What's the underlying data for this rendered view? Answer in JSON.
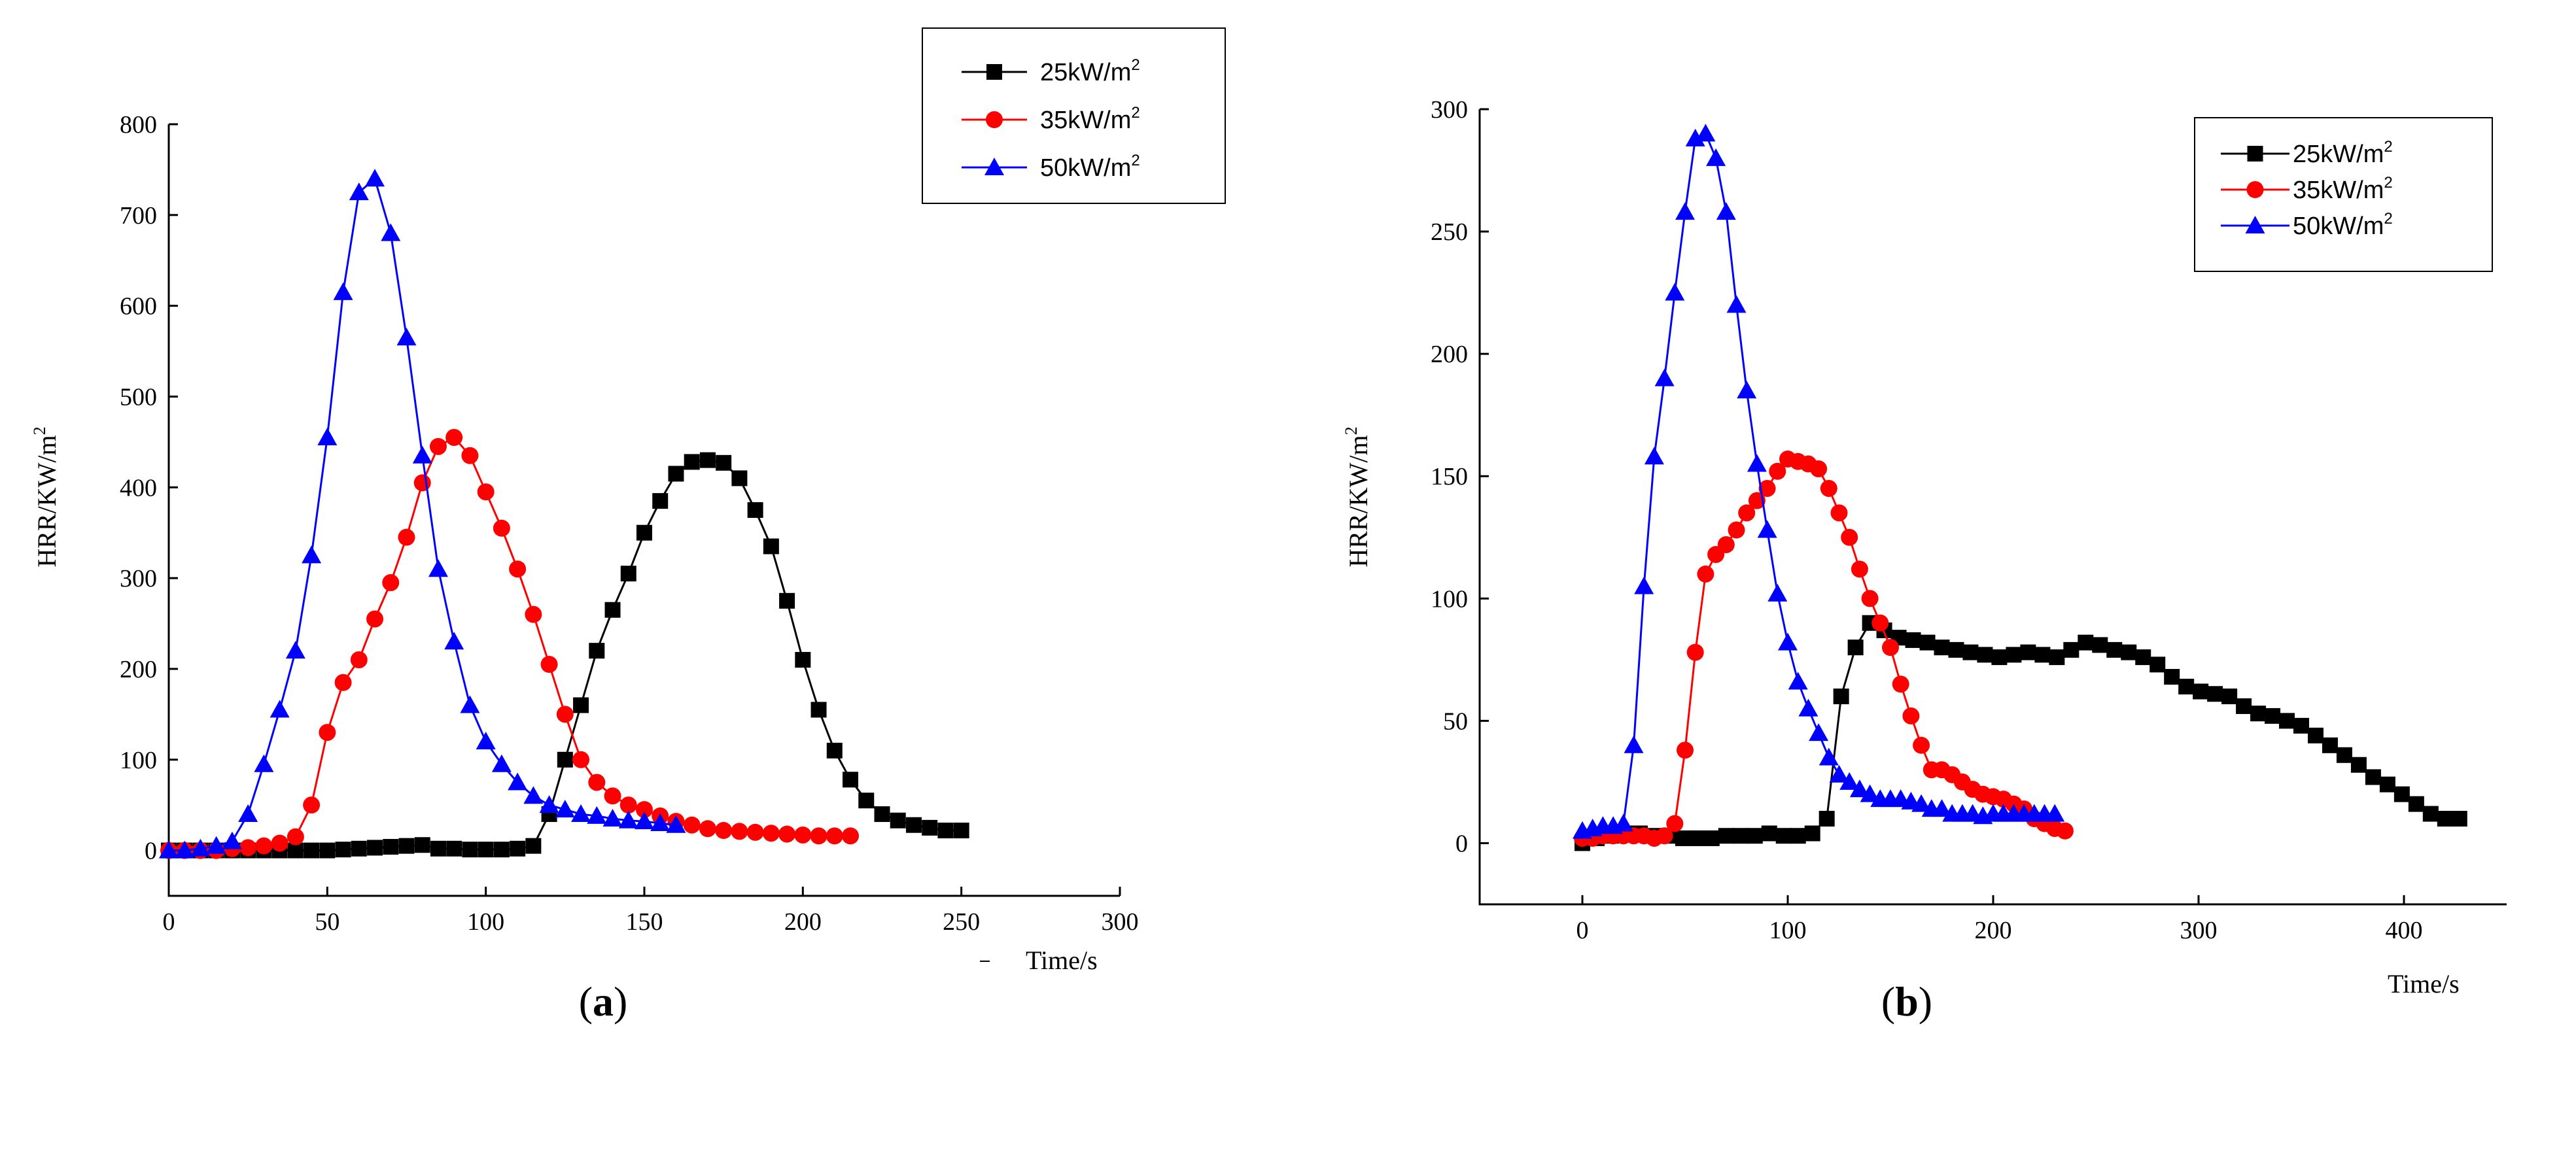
{
  "colors": {
    "s25": "#000000",
    "s35": "#ff0000",
    "s50": "#0000ff"
  },
  "chart_data": [
    {
      "type": "line",
      "panel": "a",
      "panel_label_open": "(",
      "panel_label_letter": "a",
      "panel_label_close": ")",
      "ylabel": "HRR/KW/m",
      "ylabel_sup": "2",
      "xlabel": "Time/s",
      "xlim": [
        0,
        300
      ],
      "ylim": [
        -50,
        800
      ],
      "xticks": [
        0,
        50,
        100,
        150,
        200,
        250,
        300
      ],
      "yticks": [
        0,
        100,
        200,
        300,
        400,
        500,
        600,
        700,
        800
      ],
      "legend_position": "top-right",
      "series": [
        {
          "name": "25kW/m",
          "sup": "2",
          "marker": "square",
          "colorKey": "s25",
          "x": [
            0,
            5,
            10,
            15,
            20,
            25,
            30,
            35,
            40,
            45,
            50,
            55,
            60,
            65,
            70,
            75,
            80,
            85,
            90,
            95,
            100,
            105,
            110,
            115,
            120,
            125,
            130,
            135,
            140,
            145,
            150,
            155,
            160,
            165,
            170,
            175,
            180,
            185,
            190,
            195,
            200,
            205,
            210,
            215,
            220,
            225,
            230,
            235,
            240,
            245,
            250
          ],
          "y": [
            0,
            0,
            0,
            0,
            0,
            0,
            0,
            0,
            0,
            0,
            0,
            1,
            2,
            3,
            4,
            5,
            6,
            2,
            2,
            1,
            1,
            1,
            2,
            5,
            40,
            100,
            160,
            220,
            265,
            305,
            350,
            385,
            415,
            428,
            430,
            427,
            410,
            375,
            335,
            275,
            210,
            155,
            110,
            78,
            55,
            40,
            33,
            28,
            25,
            22,
            22
          ]
        },
        {
          "name": "35kW/m",
          "sup": "2",
          "marker": "circle",
          "colorKey": "s35",
          "x": [
            0,
            5,
            10,
            15,
            20,
            25,
            30,
            35,
            40,
            45,
            50,
            55,
            60,
            65,
            70,
            75,
            80,
            85,
            90,
            95,
            100,
            105,
            110,
            115,
            120,
            125,
            130,
            135,
            140,
            145,
            150,
            155,
            160,
            165,
            170,
            175,
            180,
            185,
            190,
            195,
            200,
            205,
            210,
            215
          ],
          "y": [
            0,
            0,
            0,
            0,
            2,
            3,
            5,
            8,
            15,
            50,
            130,
            185,
            210,
            255,
            295,
            345,
            405,
            445,
            455,
            435,
            395,
            355,
            310,
            260,
            205,
            150,
            100,
            75,
            60,
            50,
            45,
            38,
            32,
            28,
            24,
            22,
            21,
            20,
            19,
            18,
            17,
            16,
            16,
            16
          ]
        },
        {
          "name": "50kW/m",
          "sup": "2",
          "marker": "triangle",
          "colorKey": "s50",
          "x": [
            0,
            5,
            10,
            15,
            20,
            25,
            30,
            35,
            40,
            45,
            50,
            55,
            60,
            65,
            70,
            75,
            80,
            85,
            90,
            95,
            100,
            105,
            110,
            115,
            120,
            125,
            130,
            135,
            140,
            145,
            150,
            155,
            160
          ],
          "y": [
            0,
            0,
            2,
            5,
            10,
            40,
            95,
            155,
            220,
            325,
            455,
            615,
            725,
            740,
            680,
            565,
            435,
            310,
            230,
            160,
            120,
            95,
            75,
            60,
            50,
            45,
            40,
            38,
            35,
            33,
            32,
            30,
            28
          ]
        }
      ]
    },
    {
      "type": "line",
      "panel": "b",
      "panel_label_open": "(",
      "panel_label_letter": "b",
      "panel_label_close": ")",
      "ylabel": "HRR/KW/m",
      "ylabel_sup": "2",
      "xlabel": "Time/s",
      "xlim": [
        -50,
        450
      ],
      "ylim": [
        -25,
        300
      ],
      "xticks": [
        0,
        100,
        200,
        300,
        400
      ],
      "yticks": [
        0,
        50,
        100,
        150,
        200,
        250,
        300
      ],
      "legend_position": "top-right",
      "series": [
        {
          "name": "25kW/m",
          "sup": "2",
          "marker": "square",
          "colorKey": "s25",
          "x": [
            0,
            7,
            14,
            21,
            28,
            35,
            42,
            49,
            56,
            63,
            70,
            77,
            84,
            91,
            98,
            105,
            112,
            119,
            126,
            133,
            140,
            147,
            154,
            161,
            168,
            175,
            182,
            189,
            196,
            203,
            210,
            217,
            224,
            231,
            238,
            245,
            252,
            259,
            266,
            273,
            280,
            287,
            294,
            301,
            308,
            315,
            322,
            329,
            336,
            343,
            350,
            357,
            364,
            371,
            378,
            385,
            392,
            399,
            406,
            413,
            420,
            427
          ],
          "y": [
            0,
            2,
            3,
            4,
            4,
            3,
            3,
            2,
            2,
            2,
            3,
            3,
            3,
            4,
            3,
            3,
            4,
            10,
            60,
            80,
            90,
            87,
            84,
            83,
            82,
            80,
            79,
            78,
            77,
            76,
            77,
            78,
            77,
            76,
            79,
            82,
            81,
            79,
            78,
            76,
            73,
            68,
            64,
            62,
            61,
            60,
            56,
            53,
            52,
            50,
            48,
            44,
            40,
            36,
            32,
            27,
            24,
            20,
            16,
            12,
            10,
            10
          ]
        },
        {
          "name": "35kW/m",
          "sup": "2",
          "marker": "circle",
          "colorKey": "s35",
          "x": [
            0,
            5,
            10,
            15,
            20,
            25,
            30,
            35,
            40,
            45,
            50,
            55,
            60,
            65,
            70,
            75,
            80,
            85,
            90,
            95,
            100,
            105,
            110,
            115,
            120,
            125,
            130,
            135,
            140,
            145,
            150,
            155,
            160,
            165,
            170,
            175,
            180,
            185,
            190,
            195,
            200,
            205,
            210,
            215,
            220,
            225,
            230,
            235
          ],
          "y": [
            2,
            2,
            3,
            3,
            3,
            3,
            3,
            2,
            3,
            8,
            38,
            78,
            110,
            118,
            122,
            128,
            135,
            140,
            145,
            152,
            157,
            156,
            155,
            153,
            145,
            135,
            125,
            112,
            100,
            90,
            80,
            65,
            52,
            40,
            30,
            30,
            28,
            25,
            22,
            20,
            19,
            18,
            16,
            14,
            10,
            8,
            6,
            5
          ]
        },
        {
          "name": "50kW/m",
          "sup": "2",
          "marker": "triangle",
          "colorKey": "s50",
          "x": [
            0,
            5,
            10,
            15,
            20,
            25,
            30,
            35,
            40,
            45,
            50,
            55,
            60,
            65,
            70,
            75,
            80,
            85,
            90,
            95,
            100,
            105,
            110,
            115,
            120,
            125,
            130,
            135,
            140,
            145,
            150,
            155,
            160,
            165,
            170,
            175,
            180,
            185,
            190,
            195,
            200,
            205,
            210,
            215,
            220,
            225,
            230
          ],
          "y": [
            5,
            6,
            7,
            7,
            8,
            40,
            105,
            158,
            190,
            225,
            258,
            288,
            290,
            280,
            258,
            220,
            185,
            155,
            128,
            102,
            82,
            66,
            55,
            45,
            35,
            28,
            25,
            22,
            20,
            18,
            18,
            18,
            17,
            16,
            14,
            14,
            12,
            12,
            12,
            11,
            12,
            12,
            12,
            12,
            12,
            12,
            12
          ]
        }
      ]
    }
  ]
}
